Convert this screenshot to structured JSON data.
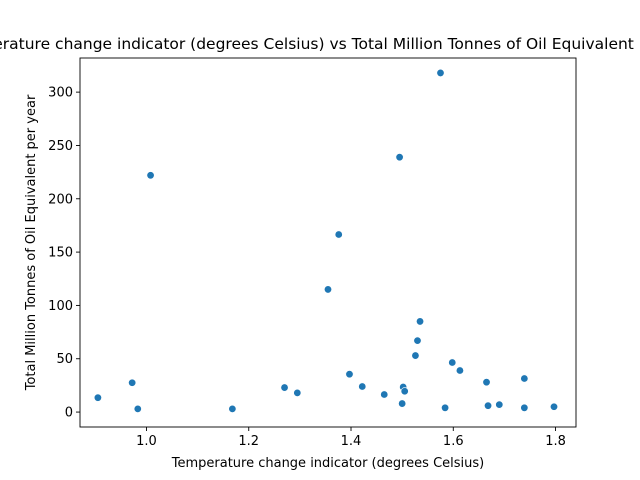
{
  "chart_data": {
    "type": "scatter",
    "title": "Temperature change indicator (degrees Celsius) vs Total Million Tonnes of Oil Equivalent per year",
    "xlabel": "Temperature change indicator (degrees Celsius)",
    "ylabel": "Total Million Tonnes of Oil Equivalent per year",
    "xlim": [
      0.87,
      1.84
    ],
    "ylim": [
      -14,
      332
    ],
    "xticks": [
      "1.0",
      "1.2",
      "1.4",
      "1.6",
      "1.8"
    ],
    "yticks": [
      "0",
      "50",
      "100",
      "150",
      "200",
      "250",
      "300"
    ],
    "grid": false,
    "marker_color": "#1f77b4",
    "points": [
      {
        "x": 0.905,
        "y": 13.5
      },
      {
        "x": 0.972,
        "y": 27.5
      },
      {
        "x": 0.983,
        "y": 3.0
      },
      {
        "x": 1.008,
        "y": 222.0
      },
      {
        "x": 1.168,
        "y": 3.0
      },
      {
        "x": 1.27,
        "y": 23.0
      },
      {
        "x": 1.295,
        "y": 18.0
      },
      {
        "x": 1.355,
        "y": 115.0
      },
      {
        "x": 1.376,
        "y": 166.5
      },
      {
        "x": 1.397,
        "y": 35.5
      },
      {
        "x": 1.422,
        "y": 24.0
      },
      {
        "x": 1.465,
        "y": 16.5
      },
      {
        "x": 1.495,
        "y": 239.0
      },
      {
        "x": 1.5,
        "y": 8.0
      },
      {
        "x": 1.502,
        "y": 23.5
      },
      {
        "x": 1.505,
        "y": 19.5
      },
      {
        "x": 1.526,
        "y": 53.0
      },
      {
        "x": 1.53,
        "y": 67.0
      },
      {
        "x": 1.535,
        "y": 85.0
      },
      {
        "x": 1.575,
        "y": 318.0
      },
      {
        "x": 1.584,
        "y": 4.0
      },
      {
        "x": 1.598,
        "y": 46.5
      },
      {
        "x": 1.613,
        "y": 39.0
      },
      {
        "x": 1.665,
        "y": 28.0
      },
      {
        "x": 1.668,
        "y": 6.0
      },
      {
        "x": 1.69,
        "y": 7.0
      },
      {
        "x": 1.739,
        "y": 31.5
      },
      {
        "x": 1.739,
        "y": 4.0
      },
      {
        "x": 1.797,
        "y": 5.0
      }
    ]
  }
}
